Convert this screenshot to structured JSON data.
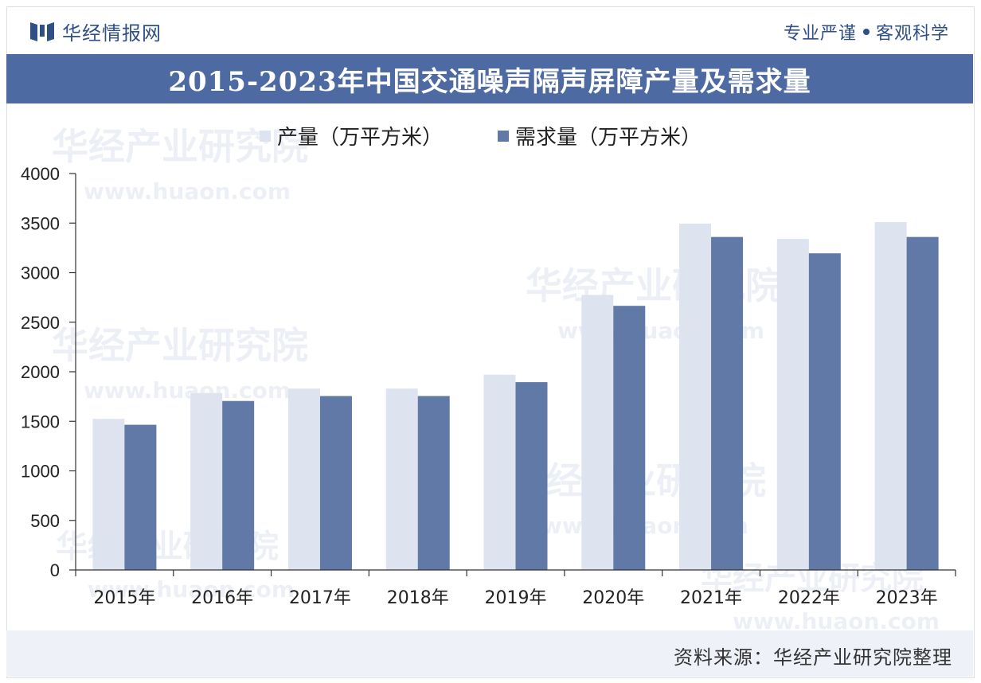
{
  "header": {
    "brand_name": "华经情报网",
    "slogan_left": "专业严谨",
    "slogan_right": "客观科学"
  },
  "footer": {
    "source": "资料来源：华经产业研究院整理"
  },
  "watermark": {
    "text": "华经产业研究院",
    "url": "www.huaon.com"
  },
  "colors": {
    "title_bg": "#4d6aa2",
    "production": "#dde4ef",
    "demand": "#6079a7"
  },
  "chart_data": {
    "type": "bar",
    "title": "2015-2023年中国交通噪声隔声屏障产量及需求量",
    "categories": [
      "2015年",
      "2016年",
      "2017年",
      "2018年",
      "2019年",
      "2020年",
      "2021年",
      "2022年",
      "2023年"
    ],
    "series": [
      {
        "name": "产量（万平方米）",
        "values": [
          1525,
          1785,
          1830,
          1830,
          1970,
          2775,
          3495,
          3340,
          3510
        ]
      },
      {
        "name": "需求量（万平方米）",
        "values": [
          1465,
          1705,
          1755,
          1755,
          1895,
          2665,
          3360,
          3195,
          3360
        ]
      }
    ],
    "xlabel": "",
    "ylabel": "",
    "ylim": [
      0,
      4000
    ],
    "yticks": [
      0,
      500,
      1000,
      1500,
      2000,
      2500,
      3000,
      3500,
      4000
    ],
    "legend": "top-center",
    "grid": false
  }
}
